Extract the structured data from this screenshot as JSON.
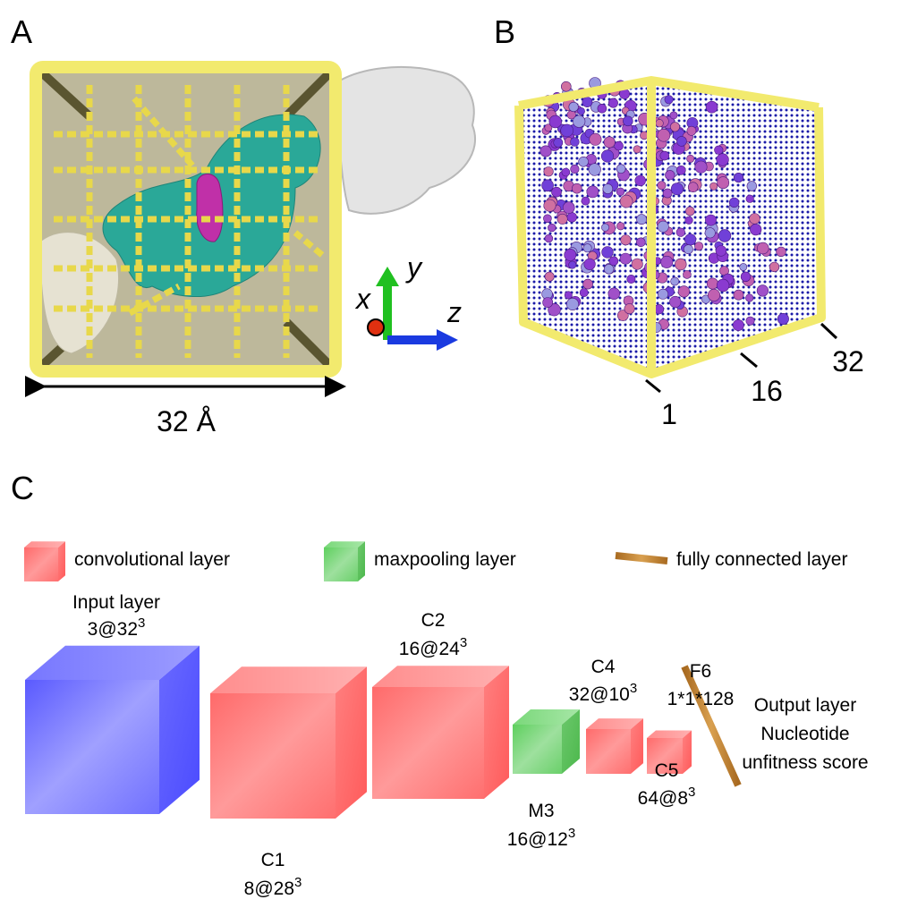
{
  "panels": {
    "a": {
      "label": "A",
      "scale": "32 Å",
      "axes": {
        "x": "x",
        "y": "y",
        "z": "z"
      }
    },
    "b": {
      "label": "B",
      "ticks": [
        "1",
        "16",
        "32"
      ]
    },
    "c": {
      "label": "C",
      "legend": [
        "convolutional layer",
        "maxpooling layer",
        "fully connected layer"
      ],
      "layers": [
        {
          "name": "Input layer",
          "size": {
            "base": "3@32",
            "exp": "3"
          }
        },
        {
          "name": "C1",
          "size": {
            "base": "8@28",
            "exp": "3"
          }
        },
        {
          "name": "C2",
          "size": {
            "base": "16@24",
            "exp": "3"
          }
        },
        {
          "name": "M3",
          "size": {
            "base": "16@12",
            "exp": "3"
          }
        },
        {
          "name": "C4",
          "size": {
            "base": "32@10",
            "exp": "3"
          }
        },
        {
          "name": "C5",
          "size": {
            "base": "64@8",
            "exp": "3"
          }
        },
        {
          "name": "F6",
          "size": {
            "base": "1*1*128"
          }
        }
      ],
      "output": [
        "Output layer",
        "Nucleotide",
        "unfitness score"
      ]
    }
  }
}
